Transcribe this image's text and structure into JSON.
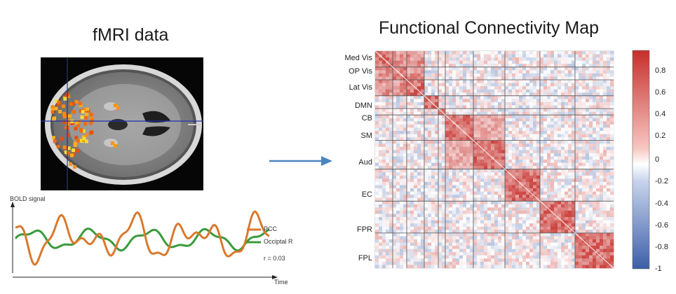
{
  "left": {
    "title": "fMRI data",
    "signal": {
      "ylabel": "BOLD signal",
      "xlabel": "Time",
      "legend": [
        {
          "label": "PCC",
          "color": "#d9792e"
        },
        {
          "label": "Occiptal R",
          "color": "#3a9a3a"
        }
      ],
      "r_text": "r = 0.03"
    }
  },
  "right": {
    "title": "Functional Connectivity Map",
    "roi_labels": [
      "Med Vis",
      "OP Vis",
      "Lat Vis",
      "DMN",
      "CB",
      "SM",
      "Aud",
      "EC",
      "FPR",
      "FPL"
    ],
    "colorbar": {
      "ticks": [
        "0.8",
        "0.6",
        "0.4",
        "0.2",
        "0",
        "-0.2",
        "-0.4",
        "-0.6",
        "-0.8",
        "-1"
      ],
      "colors": [
        "#c62f2a",
        "#ffffff",
        "#3c5fa8"
      ]
    }
  },
  "arrow_color": "#4a86c1"
}
